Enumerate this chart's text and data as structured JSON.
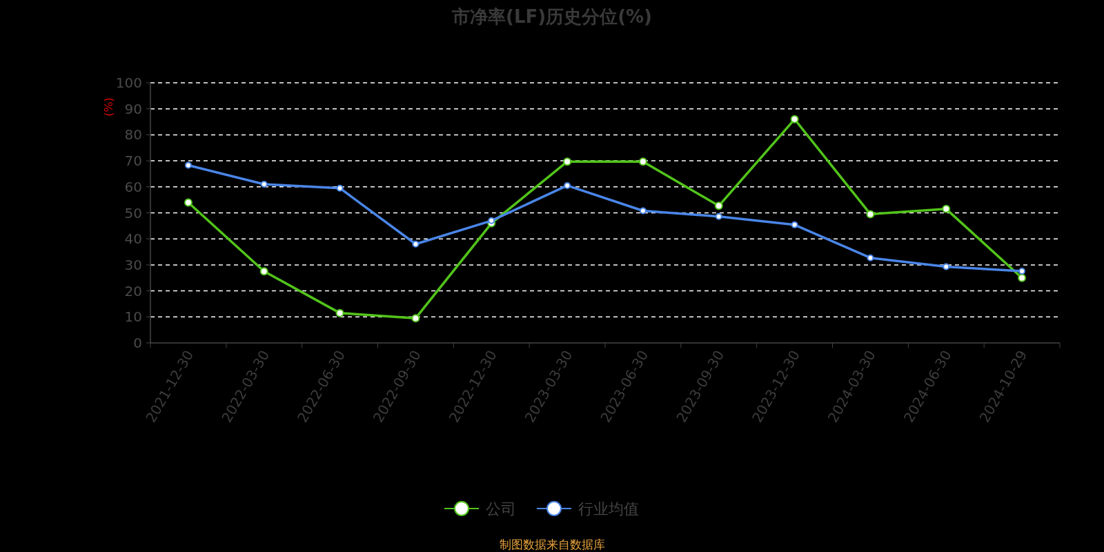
{
  "chart_data": {
    "type": "line",
    "title": "市净率(LF)历史分位(%)",
    "ylabel": "(%)",
    "categories": [
      "2021-12-30",
      "2022-03-30",
      "2022-06-30",
      "2022-09-30",
      "2022-12-30",
      "2023-03-30",
      "2023-06-30",
      "2023-09-30",
      "2023-12-30",
      "2024-03-30",
      "2024-06-30",
      "2024-10-29"
    ],
    "series": [
      {
        "name": "公司",
        "color": "#52c41a",
        "values": [
          54,
          27.5,
          11.5,
          9.5,
          46,
          69.7,
          69.7,
          52.7,
          86,
          49.5,
          51.5,
          25
        ]
      },
      {
        "name": "行业均值",
        "color": "#4a86e8",
        "values": [
          68.3,
          61,
          59.5,
          38,
          47,
          60.5,
          50.8,
          48.6,
          45.4,
          32.7,
          29.3,
          27.6
        ]
      }
    ],
    "ylim": [
      0,
      100
    ],
    "yticks": [
      0,
      10,
      20,
      30,
      40,
      50,
      60,
      70,
      80,
      90,
      100
    ],
    "grid": "y",
    "legend": "bottom",
    "marker": "circle",
    "line_style": "solid",
    "annotations": [
      "制图数据来自数据库"
    ]
  }
}
